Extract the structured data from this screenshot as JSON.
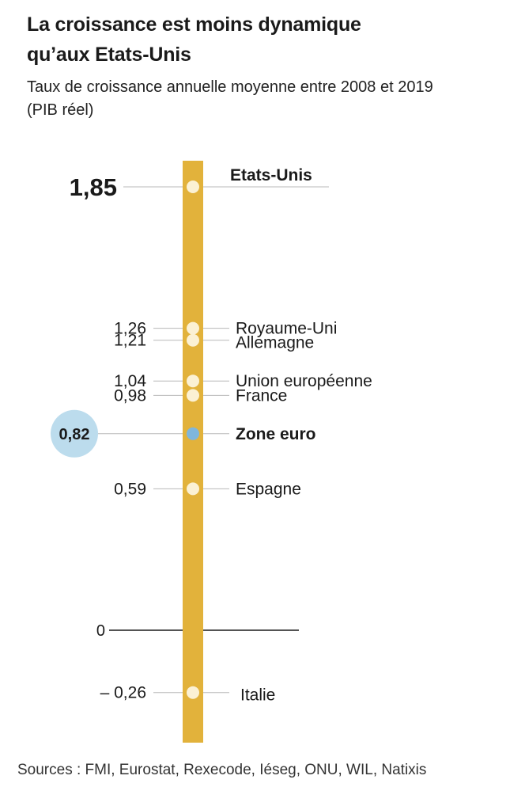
{
  "title": "La croissance est moins dynamique\nqu’aux Etats-Unis",
  "subtitle": "Taux de croissance annuelle moyenne entre 2008 et 2019\n (PIB réel)",
  "source": "Sources : FMI, Eurostat, Rexecode, Iéseg, ONU, WIL, Natixis",
  "colors": {
    "bar": "#e2b23b",
    "dot": "#fbf1d4",
    "highlight_dot": "#7fb6db",
    "highlight_circle": "#bcdced",
    "leader": "#b8b8b8",
    "zero_line": "#1a1a1a"
  },
  "chart_data": {
    "type": "scatter",
    "ylim": [
      -0.36,
      1.85
    ],
    "zero_label": "0",
    "points": [
      {
        "name": "Etats-Unis",
        "value": 1.85,
        "label": "1,85",
        "emphasis": "top"
      },
      {
        "name": "Royaume-Uni",
        "value": 1.26,
        "label": "1,26"
      },
      {
        "name": "Allemagne",
        "value": 1.21,
        "label": "1,21"
      },
      {
        "name": "Union européenne",
        "value": 1.04,
        "label": "1,04"
      },
      {
        "name": "France",
        "value": 0.98,
        "label": "0,98"
      },
      {
        "name": "Zone euro",
        "value": 0.82,
        "label": "0,82",
        "emphasis": "highlight"
      },
      {
        "name": "Espagne",
        "value": 0.59,
        "label": "0,59"
      },
      {
        "name": "Italie",
        "value": -0.26,
        "label": "– 0,26"
      }
    ]
  }
}
